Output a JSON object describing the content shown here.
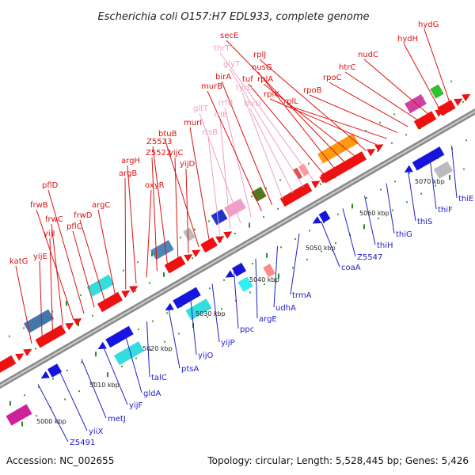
{
  "title": "Escherichia coli O157:H7 EDL933, complete genome",
  "footer": {
    "accession": "Accession: NC_002655",
    "summary": "Topology: circular; Length: 5,528,445 bp; Genes: 5,426"
  },
  "ticks": [
    "5000 kbp",
    "5010 kbp",
    "5020 kbp",
    "5030 kbp",
    "5040 kbp",
    "5050 kbp",
    "5060 kbp",
    "5070 kbp"
  ],
  "top_labels": [
    {
      "text": "katG",
      "kind": "gene"
    },
    {
      "text": "yijE",
      "kind": "gene"
    },
    {
      "text": "yijI",
      "kind": "gene"
    },
    {
      "text": "frwC",
      "kind": "gene"
    },
    {
      "text": "frwB",
      "kind": "gene"
    },
    {
      "text": "pflD",
      "kind": "gene"
    },
    {
      "text": "pflC",
      "kind": "gene"
    },
    {
      "text": "frwD",
      "kind": "gene"
    },
    {
      "text": "argC",
      "kind": "gene"
    },
    {
      "text": "argB",
      "kind": "gene"
    },
    {
      "text": "argH",
      "kind": "gene"
    },
    {
      "text": "oxyR",
      "kind": "gene"
    },
    {
      "text": "Z5522",
      "kind": "gene"
    },
    {
      "text": "Z5523",
      "kind": "gene"
    },
    {
      "text": "yijC",
      "kind": "gene"
    },
    {
      "text": "yijD",
      "kind": "gene"
    },
    {
      "text": "btuB",
      "kind": "gene"
    },
    {
      "text": "murI",
      "kind": "gene"
    },
    {
      "text": "rrsB",
      "kind": "rna"
    },
    {
      "text": "rrlB",
      "kind": "rna"
    },
    {
      "text": "gltT",
      "kind": "rna"
    },
    {
      "text": "rrfB",
      "kind": "rna"
    },
    {
      "text": "murB",
      "kind": "gene"
    },
    {
      "text": "birA",
      "kind": "gene"
    },
    {
      "text": "tyrU",
      "kind": "rna"
    },
    {
      "text": "thrU",
      "kind": "rna"
    },
    {
      "text": "glyT",
      "kind": "rna"
    },
    {
      "text": "thrT",
      "kind": "rna"
    },
    {
      "text": "tuf",
      "kind": "gene"
    },
    {
      "text": "nusG",
      "kind": "gene"
    },
    {
      "text": "secE",
      "kind": "gene"
    },
    {
      "text": "rplA",
      "kind": "gene"
    },
    {
      "text": "rplJ",
      "kind": "gene"
    },
    {
      "text": "rplK",
      "kind": "gene"
    },
    {
      "text": "rplL",
      "kind": "gene"
    },
    {
      "text": "rpoB",
      "kind": "gene"
    },
    {
      "text": "rpoC",
      "kind": "gene"
    },
    {
      "text": "htrC",
      "kind": "gene"
    },
    {
      "text": "nudC",
      "kind": "gene"
    },
    {
      "text": "hydH",
      "kind": "gene"
    },
    {
      "text": "hydG",
      "kind": "gene"
    }
  ],
  "bottom_labels": [
    "Z5491",
    "yiiX",
    "metJ",
    "yijF",
    "gldA",
    "talC",
    "ptsA",
    "yijO",
    "yijP",
    "ppc",
    "argE",
    "udhA",
    "trmA",
    "coaA",
    "Z5547",
    "thiH",
    "thiG",
    "thiS",
    "thiF",
    "thiE"
  ]
}
